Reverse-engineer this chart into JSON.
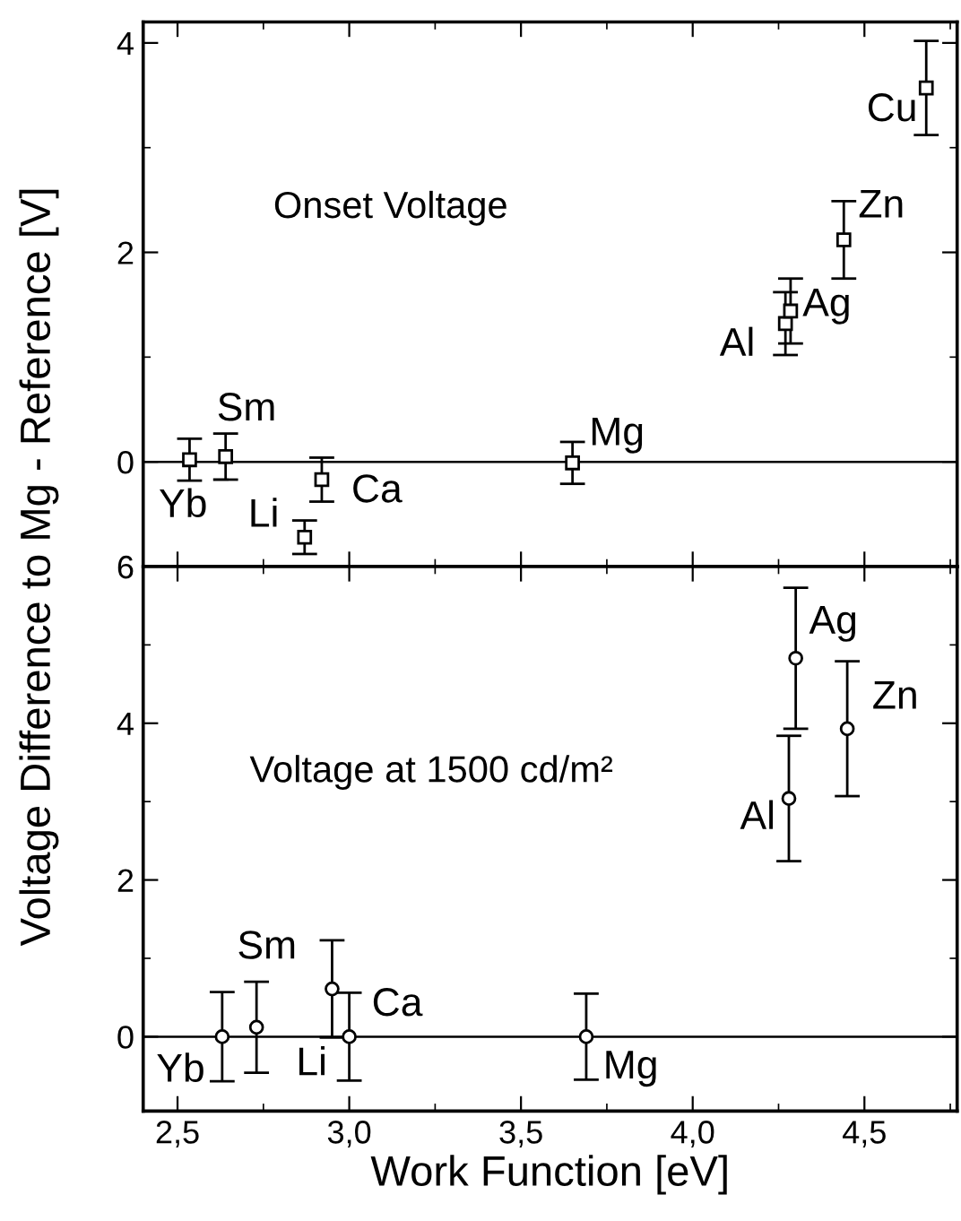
{
  "chart_data": [
    {
      "type": "scatter",
      "ylabel": "Voltage Difference to Mg - Reference [V]",
      "marker": "square",
      "tick_labels": "y",
      "grid": false,
      "legend": false,
      "xlim": [
        2.4,
        4.77
      ],
      "xticks": [
        2.5,
        3.0,
        3.5,
        4.0,
        4.5
      ],
      "ylim": [
        -1.0,
        4.2
      ],
      "yticks": [
        0,
        2,
        4
      ],
      "series": [
        {
          "color": "#000000",
          "x": [
            2.535,
            2.64,
            2.87,
            2.92,
            3.65,
            4.27,
            4.285,
            4.44,
            4.68
          ],
          "values": [
            0.02,
            0.05,
            -0.72,
            -0.17,
            -0.01,
            1.32,
            1.44,
            2.12,
            3.57
          ],
          "errors": [
            0.2,
            0.22,
            0.16,
            0.21,
            0.2,
            0.3,
            0.31,
            0.37,
            0.45
          ]
        }
      ],
      "ref_lines": [
        {
          "axis": "y",
          "value": 0,
          "color": "#000000"
        }
      ],
      "annotations": [
        "Onset Voltage",
        "Yb",
        "Sm",
        "Li",
        "Ca",
        "Mg",
        "Al",
        "Ag",
        "Zn",
        "Cu"
      ]
    },
    {
      "type": "scatter",
      "xlabel": "Work Function [eV]",
      "marker": "circle",
      "grid": false,
      "legend": false,
      "xlim": [
        2.4,
        4.77
      ],
      "xticks": [
        {
          "value": 2.5,
          "label": "2,5"
        },
        {
          "value": 3.0,
          "label": "3,0"
        },
        {
          "value": 3.5,
          "label": "3,5"
        },
        {
          "value": 4.0,
          "label": "4,0"
        },
        {
          "value": 4.5,
          "label": "4,5"
        }
      ],
      "ylim": [
        -0.95,
        6
      ],
      "yticks": [
        0,
        2,
        4,
        6
      ],
      "series": [
        {
          "color": "#000000",
          "x": [
            2.63,
            2.73,
            2.95,
            3.0,
            3.69,
            4.28,
            4.3,
            4.45
          ],
          "values": [
            0.0,
            0.12,
            0.61,
            0.0,
            0.0,
            3.04,
            4.83,
            3.93
          ],
          "errors": [
            0.57,
            0.58,
            0.62,
            0.56,
            0.55,
            0.8,
            0.9,
            0.86
          ]
        }
      ],
      "ref_lines": [
        {
          "axis": "y",
          "value": 0,
          "color": "#000000"
        }
      ],
      "annotations": [
        "Voltage at 1500 cd/m²",
        "Yb",
        "Sm",
        "Li",
        "Ca",
        "Mg",
        "Al",
        "Ag",
        "Zn"
      ]
    }
  ]
}
